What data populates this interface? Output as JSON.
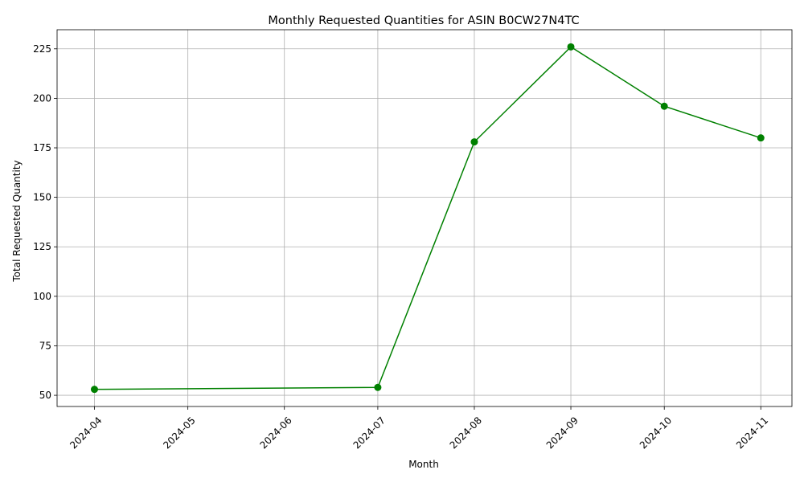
{
  "chart_data": {
    "type": "line",
    "title": "Monthly Requested Quantities for ASIN B0CW27N4TC",
    "xlabel": "Month",
    "ylabel": "Total Requested Quantity",
    "x_ticks": [
      "2024-04",
      "2024-05",
      "2024-06",
      "2024-07",
      "2024-08",
      "2024-09",
      "2024-10",
      "2024-11"
    ],
    "y_ticks": [
      50,
      75,
      100,
      125,
      150,
      175,
      200,
      225
    ],
    "ylim": [
      44.35,
      234.65
    ],
    "xlim": [
      "2024-03-20",
      "2024-11-11"
    ],
    "grid": true,
    "series": [
      {
        "color": "#008000",
        "marker": "circle",
        "points": [
          {
            "x": "2024-04-01",
            "y": 53
          },
          {
            "x": "2024-07-01",
            "y": 54
          },
          {
            "x": "2024-08-01",
            "y": 178
          },
          {
            "x": "2024-09-01",
            "y": 226
          },
          {
            "x": "2024-10-01",
            "y": 196
          },
          {
            "x": "2024-11-01",
            "y": 180
          }
        ]
      }
    ]
  }
}
